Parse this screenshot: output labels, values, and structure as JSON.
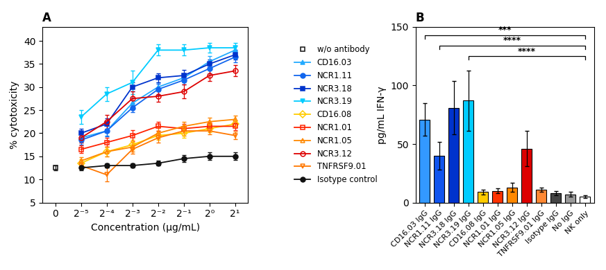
{
  "chart_data": [
    {
      "type": "line",
      "title": "A",
      "xlabel": "Concentration (μg/mL)",
      "ylabel": "% cytotoxicity",
      "categories": [
        "0",
        "2⁻⁵",
        "2⁻⁴",
        "2⁻³",
        "2⁻²",
        "2⁻¹",
        "2⁰",
        "2¹"
      ],
      "ylim": [
        5,
        43
      ],
      "yticks": [
        5,
        10,
        15,
        20,
        25,
        30,
        35,
        40
      ],
      "legend": "center left",
      "series": [
        {
          "name": "w/o antibody",
          "color": "#111111",
          "marker": "open_square",
          "line_style": "none",
          "values": [
            12.5,
            null,
            null,
            null,
            null,
            null,
            null,
            null
          ],
          "errors": [
            0.5,
            null,
            null,
            null,
            null,
            null,
            null,
            null
          ]
        },
        {
          "name": "CD16.03",
          "color": "#22AAFF",
          "marker": "triangle_up",
          "line_style": "solid",
          "values": [
            null,
            19.0,
            20.5,
            26.5,
            30.0,
            32.0,
            35.5,
            38.0
          ],
          "errors": [
            null,
            1.0,
            1.0,
            1.2,
            1.0,
            1.0,
            1.2,
            1.0
          ]
        },
        {
          "name": "NCR1.11",
          "color": "#1166EE",
          "marker": "circle",
          "line_style": "solid",
          "values": [
            null,
            18.5,
            20.5,
            25.5,
            29.5,
            31.5,
            34.0,
            36.5
          ],
          "errors": [
            null,
            1.0,
            1.2,
            1.0,
            1.2,
            1.0,
            1.0,
            1.2
          ]
        },
        {
          "name": "NCR3.18",
          "color": "#0033CC",
          "marker": "square",
          "line_style": "solid",
          "values": [
            null,
            20.0,
            22.0,
            30.0,
            32.0,
            32.5,
            35.0,
            37.0
          ],
          "errors": [
            null,
            1.0,
            1.2,
            1.0,
            1.0,
            1.2,
            1.0,
            1.0
          ]
        },
        {
          "name": "NCR3.19",
          "color": "#00CCFF",
          "marker": "triangle_down",
          "line_style": "solid",
          "values": [
            null,
            23.5,
            28.5,
            31.0,
            38.0,
            38.0,
            38.5,
            38.5
          ],
          "errors": [
            null,
            1.5,
            1.5,
            2.5,
            1.2,
            1.2,
            1.0,
            1.0
          ]
        },
        {
          "name": "CD16.08",
          "color": "#FFCC00",
          "marker": "open_diamond",
          "line_style": "solid",
          "values": [
            null,
            13.5,
            16.0,
            17.5,
            19.5,
            20.0,
            21.0,
            22.0
          ],
          "errors": [
            null,
            0.8,
            1.0,
            1.0,
            1.0,
            1.0,
            0.8,
            0.8
          ]
        },
        {
          "name": "NCR1.01",
          "color": "#FF2200",
          "marker": "open_square",
          "line_style": "solid",
          "values": [
            null,
            16.5,
            18.0,
            19.5,
            21.5,
            21.0,
            21.5,
            21.5
          ],
          "errors": [
            null,
            0.8,
            1.0,
            1.2,
            1.0,
            1.0,
            0.8,
            0.8
          ]
        },
        {
          "name": "NCR1.05",
          "color": "#FF8800",
          "marker": "open_triangle_up",
          "line_style": "solid",
          "values": [
            null,
            14.0,
            16.0,
            17.0,
            20.0,
            21.5,
            22.5,
            23.0
          ],
          "errors": [
            null,
            0.8,
            1.0,
            1.0,
            1.2,
            1.0,
            0.8,
            0.8
          ]
        },
        {
          "name": "NCR3.12",
          "color": "#DD0000",
          "marker": "open_circle",
          "line_style": "solid",
          "values": [
            null,
            19.0,
            22.5,
            27.5,
            28.0,
            29.0,
            32.5,
            33.5
          ],
          "errors": [
            null,
            1.0,
            1.5,
            1.5,
            1.2,
            1.5,
            1.2,
            1.2
          ]
        },
        {
          "name": "TNFRSF9.01",
          "color": "#FF7700",
          "marker": "open_triangle_down",
          "line_style": "solid",
          "values": [
            null,
            13.0,
            11.0,
            16.5,
            19.0,
            20.5,
            20.5,
            19.5
          ],
          "errors": [
            null,
            0.8,
            1.5,
            1.0,
            1.0,
            1.0,
            0.8,
            0.8
          ]
        },
        {
          "name": "Isotype control",
          "color": "#111111",
          "marker": "circle",
          "line_style": "solid",
          "values": [
            null,
            12.5,
            13.0,
            13.0,
            13.5,
            14.5,
            15.0,
            15.0
          ],
          "errors": [
            null,
            0.5,
            0.5,
            0.5,
            0.5,
            0.8,
            0.8,
            0.8
          ]
        }
      ]
    },
    {
      "type": "bar",
      "title": "B",
      "ylabel": "pg/mL IFN-γ",
      "categories": [
        "CD16.03 IgG",
        "NCR1.11 IgG",
        "NCR3.18 IgG",
        "NCR3.19 IgG",
        "CD16.08 IgG",
        "NCR1.01 IgG",
        "NCR1.05 IgG",
        "NCR3.12 IgG",
        "TNFRSF9.01 IgG",
        "Isotype IgG",
        "No IgG",
        "NK only"
      ],
      "values": [
        71,
        40,
        81,
        87,
        9,
        10,
        13,
        46,
        11,
        8,
        7,
        5
      ],
      "errors": [
        14,
        12,
        23,
        26,
        2,
        2,
        4,
        15,
        2,
        2,
        2,
        1
      ],
      "colors": [
        "#3399FF",
        "#1155EE",
        "#0033CC",
        "#00CCFF",
        "#FFCC00",
        "#FF3300",
        "#FF8800",
        "#DD0000",
        "#FF8833",
        "#444444",
        "#999999",
        "#FFFFFF"
      ],
      "ylim": [
        0,
        150
      ],
      "yticks": [
        0,
        50,
        100,
        150
      ],
      "annotations": [
        {
          "text": "***",
          "y": 143,
          "x1": "CD16.03 IgG",
          "x2": "NK only"
        },
        {
          "text": "****",
          "y": 134,
          "x1": "NCR1.11 IgG",
          "x2": "NK only"
        },
        {
          "text": "****",
          "y": 125,
          "x1": "NCR3.19 IgG",
          "x2": "NK only"
        }
      ]
    }
  ]
}
